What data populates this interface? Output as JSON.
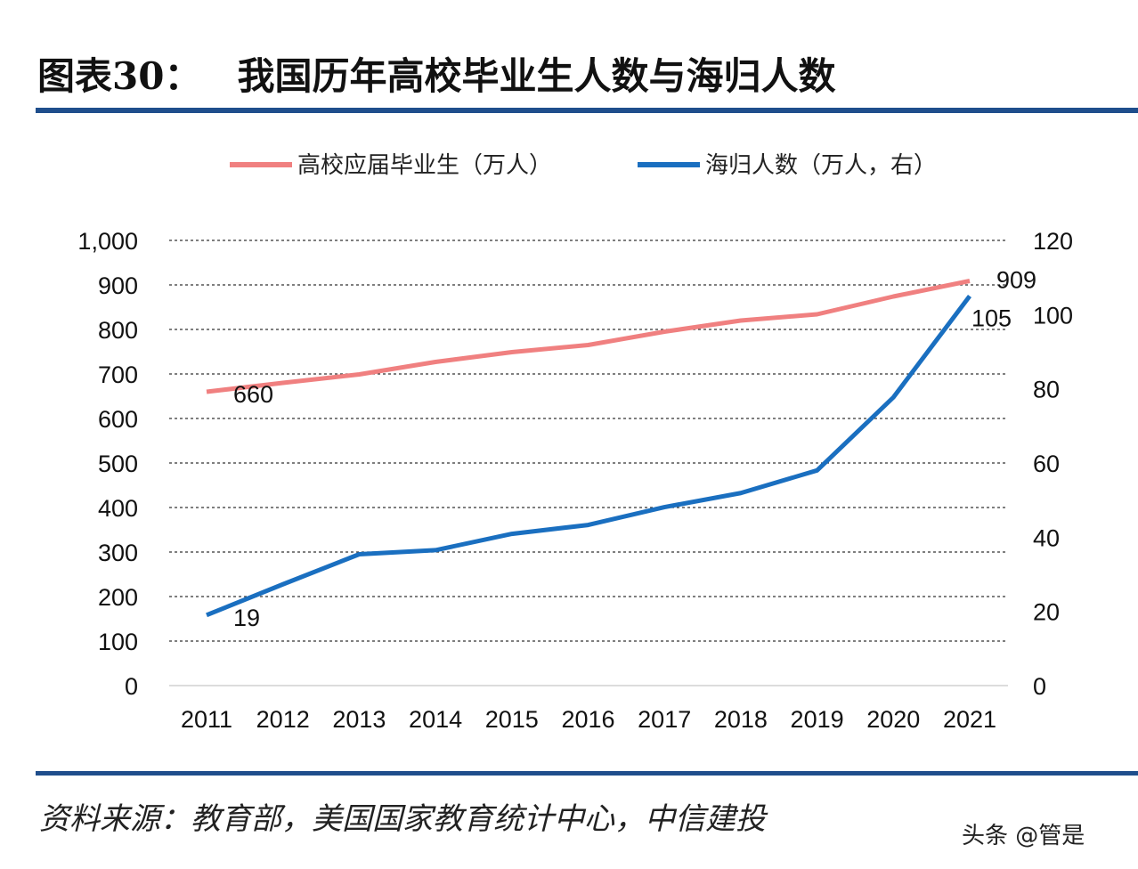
{
  "title": {
    "label": "图表30：",
    "text": "我国历年高校毕业生人数与海归人数"
  },
  "source": "资料来源：教育部，美国国家教育统计中心，中信建投",
  "watermark": "头条 @管是",
  "chart_data": {
    "type": "line",
    "categories": [
      "2011",
      "2012",
      "2013",
      "2014",
      "2015",
      "2016",
      "2017",
      "2018",
      "2019",
      "2020",
      "2021"
    ],
    "series": [
      {
        "name": "高校应届毕业生（万人）",
        "axis": "left",
        "color": "#f08080",
        "values": [
          660,
          680,
          699,
          727,
          749,
          765,
          795,
          820,
          834,
          874,
          909
        ]
      },
      {
        "name": "海归人数（万人，右）",
        "axis": "right",
        "color": "#1a6fc0",
        "values": [
          19,
          27.3,
          35.4,
          36.5,
          40.9,
          43.3,
          48.1,
          51.9,
          58.0,
          77.7,
          105
        ]
      }
    ],
    "data_labels": [
      {
        "series": 0,
        "index": 0,
        "text": "660"
      },
      {
        "series": 0,
        "index": 10,
        "text": "909"
      },
      {
        "series": 1,
        "index": 0,
        "text": "19"
      },
      {
        "series": 1,
        "index": 10,
        "text": "105"
      }
    ],
    "left_axis": {
      "ylim": [
        0,
        1000
      ],
      "ticks": [
        "0",
        "100",
        "200",
        "300",
        "400",
        "500",
        "600",
        "700",
        "800",
        "900",
        "1,000"
      ]
    },
    "right_axis": {
      "ylim": [
        0,
        120
      ],
      "ticks": [
        "0",
        "20",
        "40",
        "60",
        "80",
        "100",
        "120"
      ]
    },
    "grid": "dashed horizontal",
    "legend": "top"
  }
}
